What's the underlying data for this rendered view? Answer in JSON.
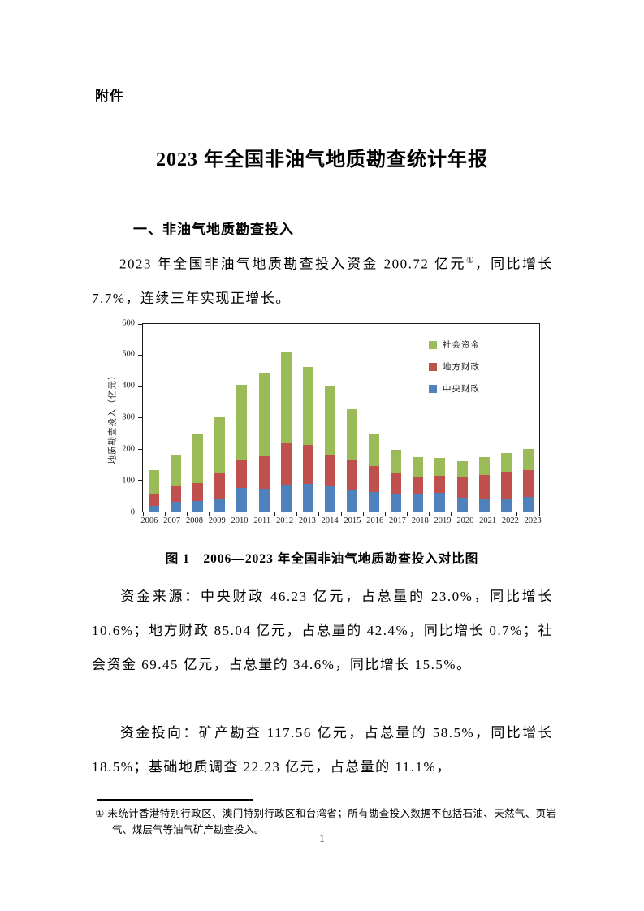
{
  "doc": {
    "attachment_label": "附件",
    "title": "2023 年全国非油气地质勘查统计年报",
    "section_heading": "一、非油气地质勘查投入",
    "para1": {
      "pre": "2023 年全国非油气地质勘查投入资金 200.72 亿元",
      "sup": "①",
      "post": "，同比增长 7.7%，连续三年实现正增长。"
    },
    "figure_caption": "图 1　2006—2023 年全国非油气地质勘查投入对比图",
    "para2": "资金来源：中央财政 46.23 亿元，占总量的 23.0%，同比增长 10.6%；地方财政 85.04 亿元，占总量的 42.4%，同比增长 0.7%；社会资金 69.45 亿元，占总量的 34.6%，同比增长 15.5%。",
    "para3": "资金投向：矿产勘查 117.56 亿元，占总量的 58.5%，同比增长 18.5%；基础地质调查 22.23 亿元，占总量的 11.1%，",
    "footnote": {
      "marker": "①",
      "text": "未统计香港特别行政区、澳门特别行政区和台湾省；所有勘查投入数据不包括石油、天然气、页岩气、煤层气等油气矿产勘查投入。"
    },
    "page_number": "1"
  },
  "chart_data": {
    "type": "bar",
    "stacked": true,
    "title": "",
    "xlabel": "",
    "ylabel": "地质勘查投入（亿元）",
    "ylim": [
      0,
      600
    ],
    "ytick_step": 100,
    "grid": false,
    "legend_position": "inside-top-right",
    "legend_order": "reversed",
    "categories": [
      "2006",
      "2007",
      "2008",
      "2009",
      "2010",
      "2011",
      "2012",
      "2013",
      "2014",
      "2015",
      "2016",
      "2017",
      "2018",
      "2019",
      "2020",
      "2021",
      "2022",
      "2023"
    ],
    "series": [
      {
        "name": "中央财政",
        "color": "#4F81BD",
        "values": [
          18,
          32,
          35,
          40,
          75,
          73,
          86,
          88,
          81,
          71,
          62,
          57,
          57,
          61,
          45,
          38,
          41.8,
          46.23
        ]
      },
      {
        "name": "地方财政",
        "color": "#C0504D",
        "values": [
          40,
          51,
          56,
          82,
          91,
          103,
          131,
          124,
          97,
          95,
          83,
          66,
          54,
          53,
          63,
          80,
          84.4,
          85.04
        ]
      },
      {
        "name": "社会资金",
        "color": "#9BBB59",
        "values": [
          74,
          98,
          159,
          179,
          240,
          266,
          293,
          250,
          224,
          161,
          102,
          74,
          62,
          57,
          53,
          56,
          60.1,
          69.45
        ]
      }
    ]
  }
}
